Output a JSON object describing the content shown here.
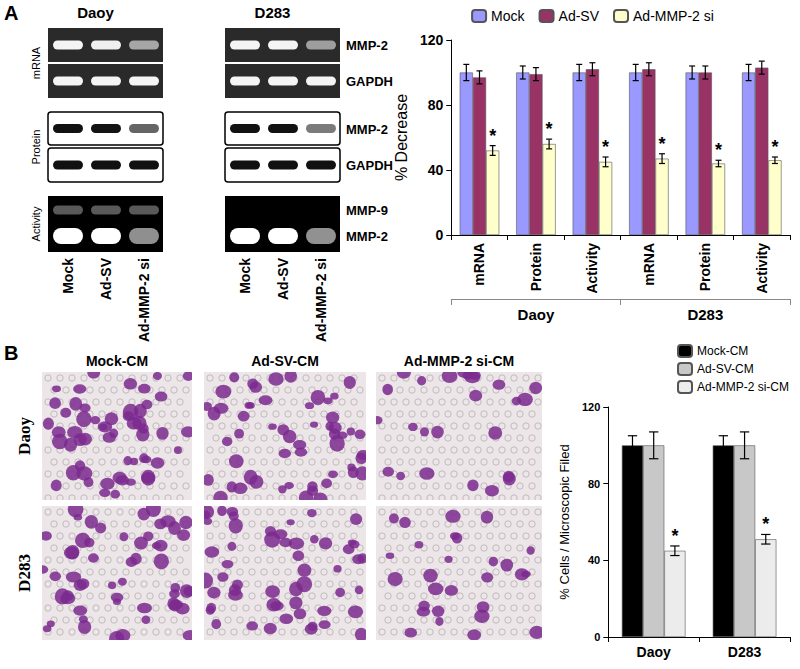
{
  "panels": {
    "A": {
      "label": "A",
      "gels": [
        {
          "title": "Daoy"
        },
        {
          "title": "D283"
        }
      ],
      "rows": [
        {
          "group": "mRNA",
          "bands": [
            "MMP-2",
            "GAPDH"
          ]
        },
        {
          "group": "Protein",
          "bands": [
            "MMP-2",
            "GAPDH"
          ]
        },
        {
          "group": "Activity",
          "bands": [
            "MMP-9",
            "MMP-2"
          ]
        }
      ],
      "lanes": [
        "Mock",
        "Ad-SV",
        "Ad-MMP-2 si"
      ]
    },
    "B": {
      "label": "B",
      "columns": [
        "Mock-CM",
        "Ad-SV-CM",
        "Ad-MMP-2 si-CM"
      ],
      "rows": [
        "Daoy",
        "D283"
      ]
    }
  },
  "chart_data": [
    {
      "type": "bar",
      "y_label": "% Decrease",
      "categories": [
        "mRNA",
        "Protein",
        "Activity",
        "mRNA",
        "Protein",
        "Activity"
      ],
      "x_groups": [
        "Daoy",
        "D283"
      ],
      "series": [
        {
          "name": "Mock",
          "color": "#9999ff",
          "values": [
            100,
            100,
            100,
            100,
            100,
            100
          ],
          "errors": [
            5,
            4,
            5,
            5,
            4,
            5
          ]
        },
        {
          "name": "Ad-SV",
          "color": "#993366",
          "values": [
            97,
            99,
            102,
            102,
            100,
            103
          ],
          "errors": [
            4,
            4,
            4,
            4,
            4,
            4
          ]
        },
        {
          "name": "Ad-MMP-2 si",
          "color": "#ffffcc",
          "values": [
            52,
            56,
            45,
            47,
            44,
            46
          ],
          "errors": [
            3,
            3,
            3,
            3,
            2,
            2
          ],
          "annotation": "*"
        }
      ],
      "ylim": [
        0,
        120
      ],
      "yticks": [
        0,
        40,
        80,
        120
      ],
      "grid": false,
      "legend": "top"
    },
    {
      "type": "bar",
      "y_label": "% Cells / Microscopic Filed",
      "categories": [
        "Daoy",
        "D283"
      ],
      "series": [
        {
          "name": "Mock-CM",
          "color": "#000000",
          "values": [
            100,
            100
          ],
          "errors": [
            5,
            5
          ]
        },
        {
          "name": "Ad-SV-CM",
          "color": "#c8c8c8",
          "values": [
            100,
            100
          ],
          "errors": [
            7,
            7
          ]
        },
        {
          "name": "Ad-MMP-2 si-CM",
          "color": "#ececec",
          "values": [
            45,
            51
          ],
          "errors": [
            2.5,
            2.5
          ],
          "annotation": "*"
        }
      ],
      "ylim": [
        0,
        120
      ],
      "yticks": [
        0,
        40,
        80,
        120
      ],
      "grid": false,
      "legend": "top-right"
    }
  ]
}
